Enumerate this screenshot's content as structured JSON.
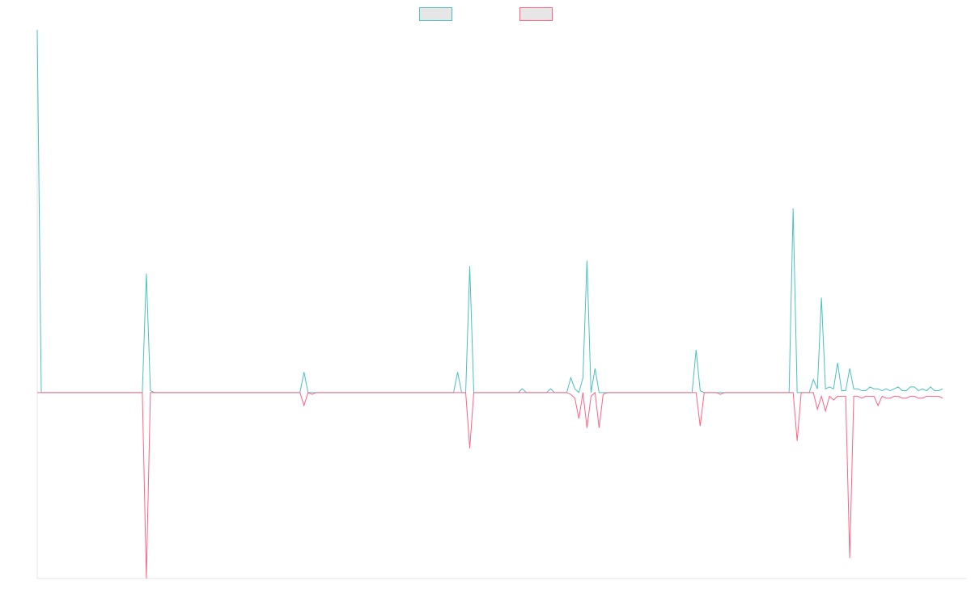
{
  "chart_data": {
    "type": "line",
    "title": "",
    "xlabel": "",
    "ylabel": "",
    "grid": false,
    "legend_position": "top-center",
    "x_count": 231,
    "ylim": [
      -100,
      195
    ],
    "series": [
      {
        "name": "",
        "color": "#4bc0c0",
        "fill": "#e6e6e6",
        "values": [
          195,
          0,
          0,
          0,
          0,
          0,
          0,
          0,
          0,
          0,
          0,
          0,
          0,
          0,
          0,
          0,
          0,
          0,
          0,
          0,
          0,
          0,
          0,
          0,
          0,
          0,
          0,
          64,
          1,
          0,
          0,
          0,
          0,
          0,
          0,
          0,
          0,
          0,
          0,
          0,
          0,
          0,
          0,
          0,
          0,
          0,
          0,
          0,
          0,
          0,
          0,
          0,
          0,
          0,
          0,
          0,
          0,
          0,
          0,
          0,
          0,
          0,
          0,
          0,
          0,
          0,
          11,
          0,
          0,
          0,
          0,
          0,
          0,
          0,
          0,
          0,
          0,
          0,
          0,
          0,
          0,
          0,
          0,
          0,
          0,
          0,
          0,
          0,
          0,
          0,
          0,
          0,
          0,
          0,
          0,
          0,
          0,
          0,
          0,
          0,
          0,
          0,
          0,
          0,
          11,
          0,
          0,
          68,
          0,
          0,
          0,
          0,
          0,
          0,
          0,
          0,
          0,
          0,
          0,
          0,
          2,
          0,
          0,
          0,
          0,
          0,
          0,
          2,
          0,
          0,
          0,
          0,
          8,
          2,
          0,
          8,
          71,
          0,
          13,
          0,
          0,
          0,
          0,
          0,
          0,
          0,
          0,
          0,
          0,
          0,
          0,
          0,
          0,
          0,
          0,
          0,
          0,
          0,
          0,
          0,
          0,
          0,
          0,
          23,
          1,
          0,
          0,
          0,
          0,
          0,
          0,
          0,
          0,
          0,
          0,
          0,
          0,
          0,
          0,
          0,
          0,
          0,
          0,
          0,
          0,
          0,
          0,
          99,
          0,
          0,
          0,
          0,
          7,
          2,
          51,
          2,
          3,
          2,
          16,
          1,
          1,
          13,
          2,
          2,
          1,
          1,
          3,
          2,
          2,
          1,
          2,
          1,
          2,
          3,
          1,
          1,
          3,
          3,
          1,
          2,
          1,
          3,
          1,
          1,
          2
        ]
      },
      {
        "name": "",
        "color": "#ff6384",
        "fill": "#e6e6e6",
        "values": [
          0,
          0,
          0,
          0,
          0,
          0,
          0,
          0,
          0,
          0,
          0,
          0,
          0,
          0,
          0,
          0,
          0,
          0,
          0,
          0,
          0,
          0,
          0,
          0,
          0,
          0,
          0,
          -100,
          0,
          0,
          0,
          0,
          0,
          0,
          0,
          0,
          0,
          0,
          0,
          0,
          0,
          0,
          0,
          0,
          0,
          0,
          0,
          0,
          0,
          0,
          0,
          0,
          0,
          0,
          0,
          0,
          0,
          0,
          0,
          0,
          0,
          0,
          0,
          0,
          0,
          0,
          -7,
          0,
          -1,
          0,
          0,
          0,
          0,
          0,
          0,
          0,
          0,
          0,
          0,
          0,
          0,
          0,
          0,
          0,
          0,
          0,
          0,
          0,
          0,
          0,
          0,
          0,
          0,
          0,
          0,
          0,
          0,
          0,
          0,
          0,
          0,
          0,
          0,
          0,
          0,
          0,
          0,
          -30,
          0,
          0,
          0,
          0,
          0,
          0,
          0,
          0,
          0,
          0,
          0,
          0,
          0,
          0,
          0,
          0,
          0,
          0,
          0,
          0,
          0,
          0,
          0,
          0,
          -1,
          -3,
          -14,
          0,
          -19,
          -2,
          0,
          -19,
          -1,
          0,
          0,
          0,
          0,
          0,
          0,
          0,
          0,
          0,
          0,
          0,
          0,
          0,
          0,
          0,
          0,
          0,
          0,
          0,
          0,
          0,
          0,
          0,
          -18,
          0,
          0,
          0,
          0,
          -1,
          0,
          0,
          0,
          0,
          0,
          0,
          0,
          0,
          0,
          0,
          0,
          0,
          0,
          0,
          0,
          0,
          0,
          0,
          -26,
          0,
          0,
          0,
          0,
          -9,
          -2,
          -10,
          -2,
          -4,
          -2,
          -2,
          -2,
          -89,
          -2,
          -2,
          -3,
          -2,
          -2,
          -2,
          -7,
          -2,
          -3,
          -3,
          -2,
          -2,
          -3,
          -3,
          -2,
          -2,
          -3,
          -3,
          -2,
          -2,
          -2,
          -2,
          -3
        ]
      }
    ]
  }
}
